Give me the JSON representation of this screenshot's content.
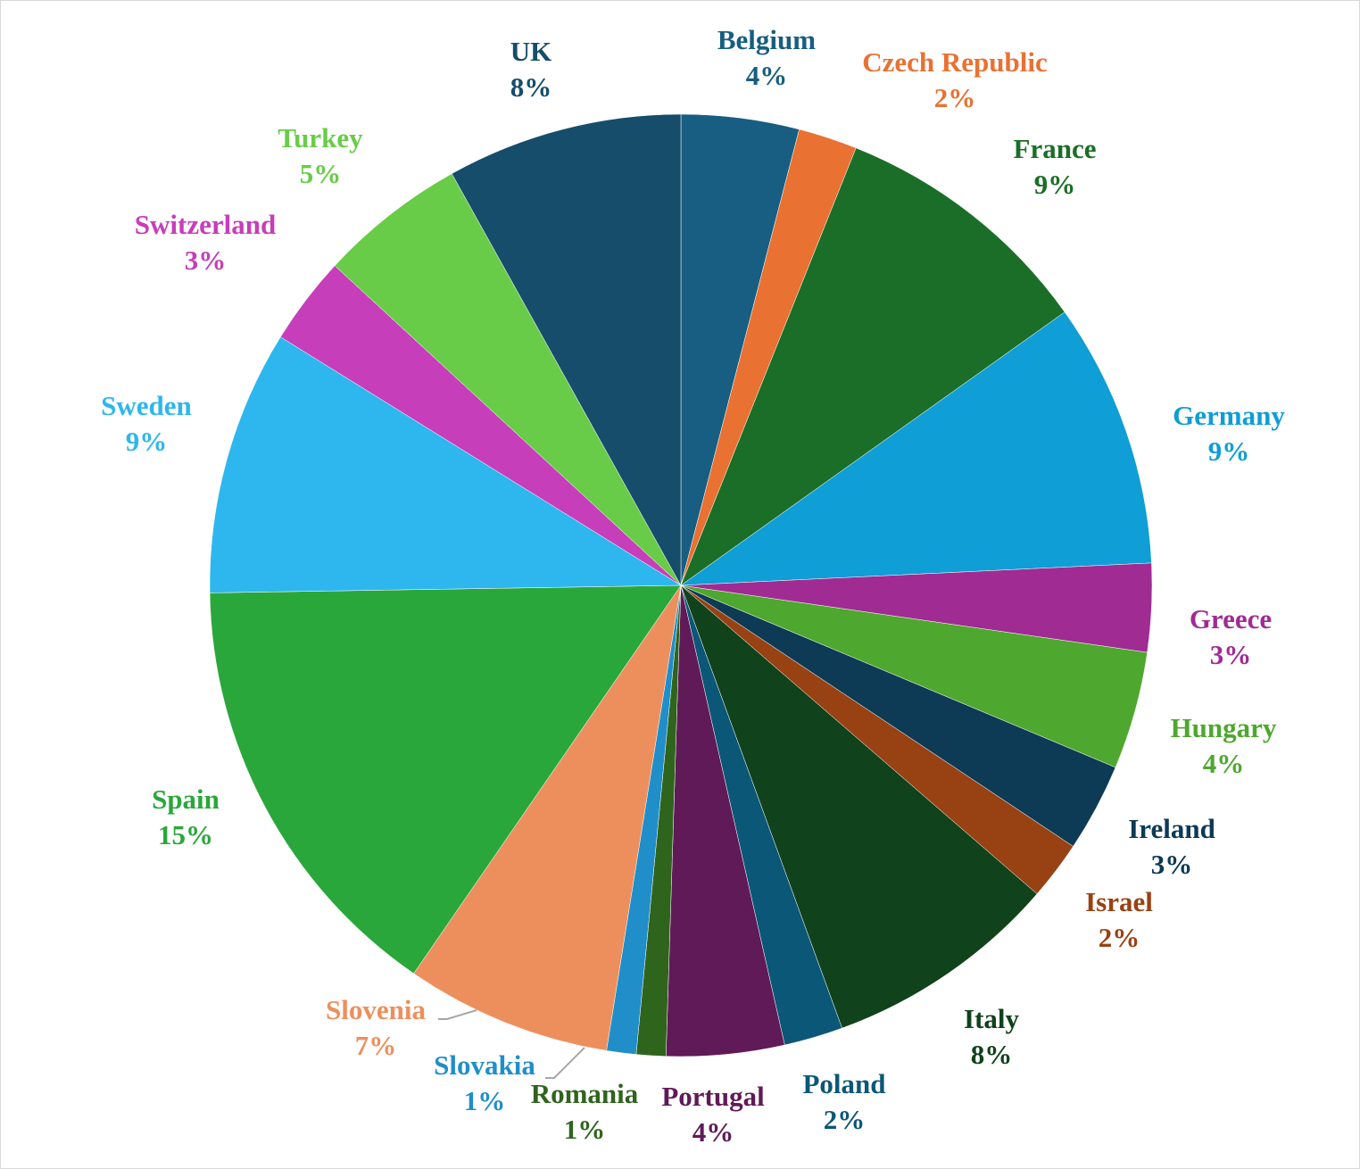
{
  "chart_data": {
    "type": "pie",
    "title": "",
    "slices": [
      {
        "label": "Belgium",
        "value": 4,
        "value_label": "4%",
        "color": "#175E82"
      },
      {
        "label": "Czech Republic",
        "value": 2,
        "value_label": "2%",
        "color": "#E97132"
      },
      {
        "label": "France",
        "value": 9,
        "value_label": "9%",
        "color": "#1B6E27"
      },
      {
        "label": "Germany",
        "value": 9,
        "value_label": "9%",
        "color": "#0F9ED5"
      },
      {
        "label": "Greece",
        "value": 3,
        "value_label": "3%",
        "color": "#A02B93"
      },
      {
        "label": "Hungary",
        "value": 4,
        "value_label": "4%",
        "color": "#4EA72E"
      },
      {
        "label": "Ireland",
        "value": 3,
        "value_label": "3%",
        "color": "#0D3A54"
      },
      {
        "label": "Israel",
        "value": 2,
        "value_label": "2%",
        "color": "#984213"
      },
      {
        "label": "Italy",
        "value": 8,
        "value_label": "8%",
        "color": "#10421B"
      },
      {
        "label": "Poland",
        "value": 2,
        "value_label": "2%",
        "color": "#0B5777"
      },
      {
        "label": "Portugal",
        "value": 4,
        "value_label": "4%",
        "color": "#601A57"
      },
      {
        "label": "Romania",
        "value": 1,
        "value_label": "1%",
        "color": "#2F641D"
      },
      {
        "label": "Slovakia",
        "value": 1,
        "value_label": "1%",
        "color": "#208EC9"
      },
      {
        "label": "Slovenia",
        "value": 7,
        "value_label": "7%",
        "color": "#ED8F5C"
      },
      {
        "label": "Spain",
        "value": 15,
        "value_label": "15%",
        "color": "#2AA73A"
      },
      {
        "label": "Sweden",
        "value": 9,
        "value_label": "9%",
        "color": "#2DB7EE"
      },
      {
        "label": "Switzerland",
        "value": 3,
        "value_label": "3%",
        "color": "#C63EBA"
      },
      {
        "label": "Turkey",
        "value": 5,
        "value_label": "5%",
        "color": "#69CC48"
      },
      {
        "label": "UK",
        "value": 8,
        "value_label": "8%",
        "color": "#154D6B"
      }
    ],
    "legend": "none",
    "data_labels": "outside"
  }
}
